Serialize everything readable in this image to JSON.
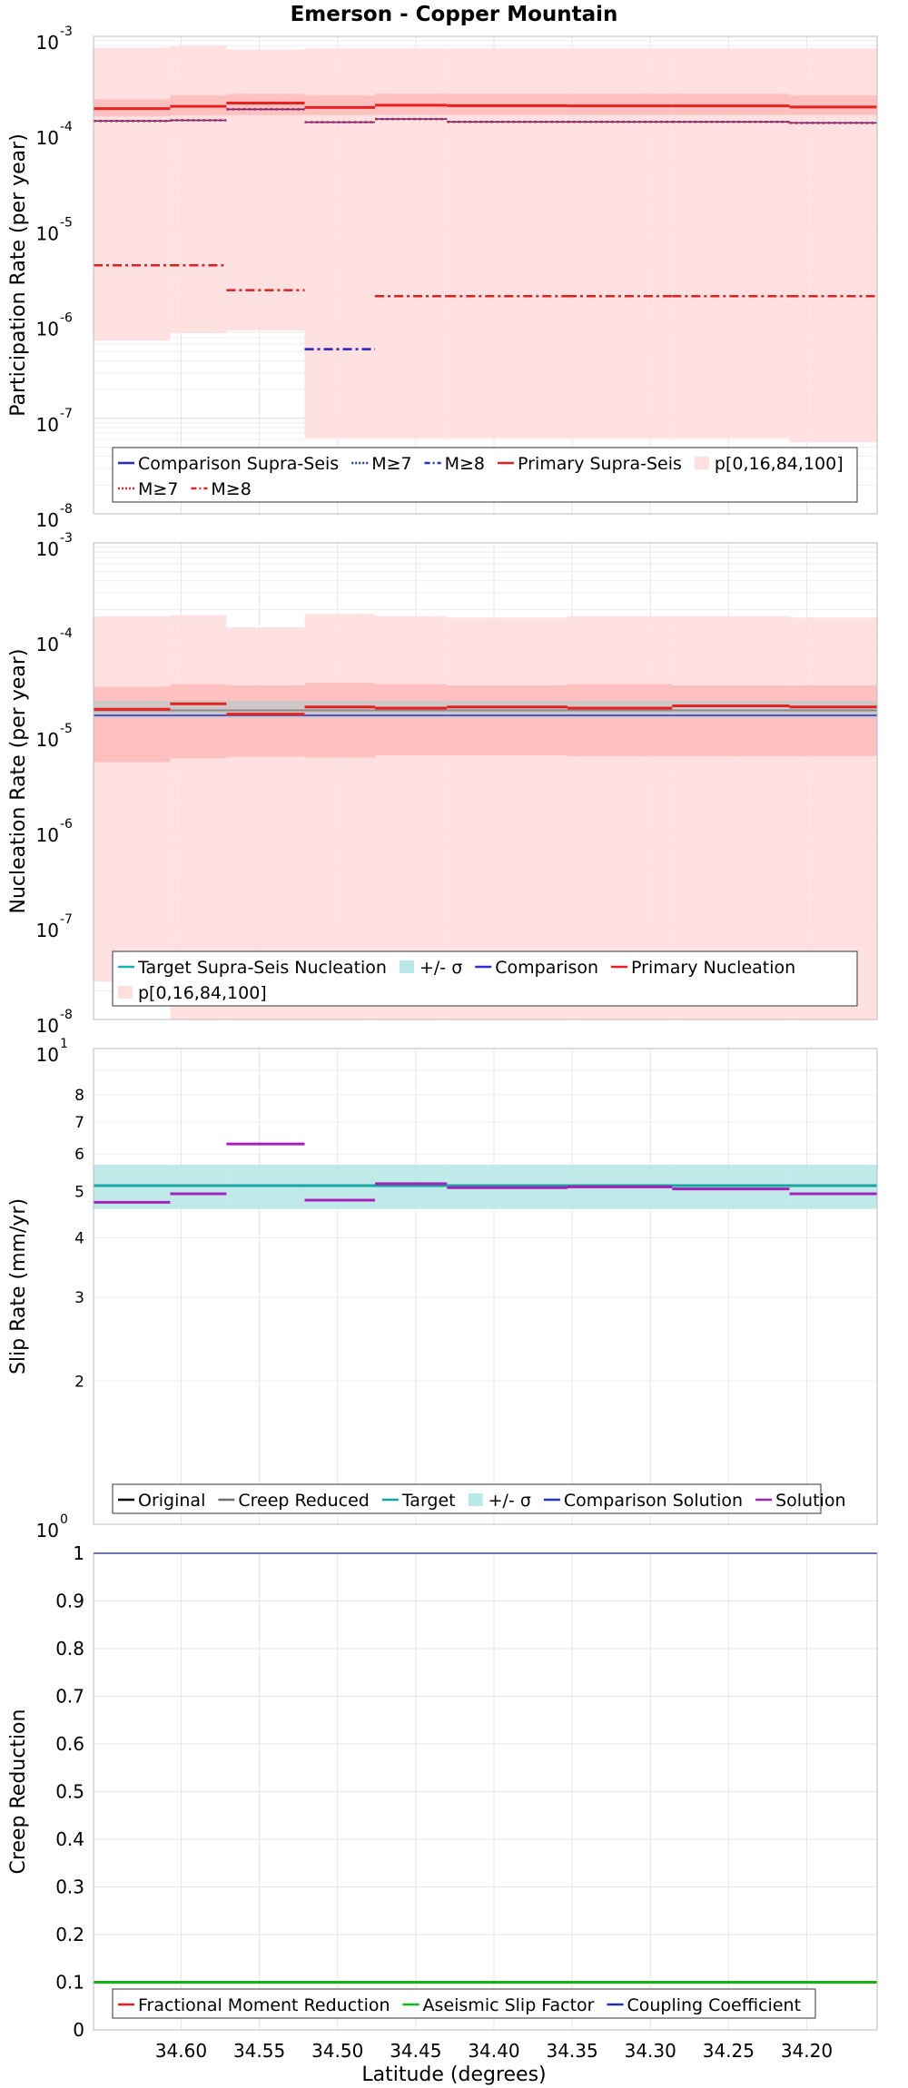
{
  "chart_data": {
    "title": "Emerson - Copper Mountain",
    "xlabel": "Latitude (degrees)",
    "x_reversed": true,
    "xlim": [
      34.656,
      34.155
    ],
    "x_ticks": [
      "34.60",
      "34.55",
      "34.50",
      "34.45",
      "34.40",
      "34.35",
      "34.30",
      "34.25",
      "34.20"
    ],
    "x_tick_values": [
      34.6,
      34.55,
      34.5,
      34.45,
      34.4,
      34.35,
      34.3,
      34.25,
      34.2
    ],
    "bin_edges": [
      34.656,
      34.607,
      34.571,
      34.521,
      34.476,
      34.43,
      34.353,
      34.286,
      34.211,
      34.155
    ],
    "panels": [
      {
        "id": "participation",
        "type": "step",
        "ylabel": "Participation Rate (per year)",
        "yscale": "log",
        "ylim": [
          1e-08,
          0.001
        ],
        "y_ticks": [
          {
            "base": "10",
            "exp": "-8"
          },
          {
            "base": "10",
            "exp": "-7"
          },
          {
            "base": "10",
            "exp": "-6"
          },
          {
            "base": "10",
            "exp": "-5"
          },
          {
            "base": "10",
            "exp": "-4"
          },
          {
            "base": "10",
            "exp": "-3"
          }
        ],
        "bands": [
          {
            "name": "p[0,16,84,100] outer",
            "color": "#ffdede",
            "lower": [
              6.5e-07,
              7.8e-07,
              8.3e-07,
              6.2e-08,
              6.2e-08,
              6.2e-08,
              6.2e-08,
              6.2e-08,
              5.6e-08
            ],
            "upper": [
              0.00076,
              0.00079,
              0.00073,
              0.00075,
              0.00075,
              0.00075,
              0.00075,
              0.00075,
              0.00075
            ]
          },
          {
            "name": "p[0,16,84,100] inner",
            "color": "#ffbcbc",
            "lower": [
              0.000145,
              0.000148,
              0.00015,
              0.00015,
              0.00015,
              0.00015,
              0.00015,
              0.00015,
              0.00015
            ],
            "upper": [
              0.00022,
              0.00024,
              0.00025,
              0.00024,
              0.00025,
              0.00025,
              0.00025,
              0.00025,
              0.00024
            ]
          }
        ],
        "series": [
          {
            "name": "Primary Supra-Seis",
            "color": "#e8201f",
            "dash": "",
            "width": 3,
            "values": [
              0.000175,
              0.000185,
              0.0002,
              0.00018,
              0.00019,
              0.000188,
              0.000187,
              0.000187,
              0.000182
            ]
          },
          {
            "name": "Comparison Supra-Seis",
            "color": "#1f2fc8",
            "dash": "",
            "width": 1.5,
            "values": [
              0.00013,
              0.000132,
              0.000172,
              0.000126,
              0.000136,
              0.000127,
              0.000127,
              0.000127,
              0.000124
            ]
          },
          {
            "name": "M≥7",
            "color": "#d21f2a",
            "dash": "3,3",
            "width": 2.5,
            "values": [
              0.00013,
              0.000132,
              0.000172,
              0.000126,
              0.000136,
              0.000127,
              0.000127,
              0.000127,
              0.000124
            ]
          },
          {
            "name": "M≥8",
            "color": "#e02020",
            "dash": "10,4,3,4",
            "width": 2.5,
            "values": [
              4e-06,
              4e-06,
              2.2e-06,
              5.3e-07,
              1.9e-06,
              1.9e-06,
              1.9e-06,
              1.9e-06,
              1.9e-06
            ]
          },
          {
            "name": "Comparison M≥8",
            "color": "#2a2fd0",
            "dash": "10,4,3,4",
            "width": 2.5,
            "segments": [
              3
            ],
            "values": [
              5.3e-07
            ]
          }
        ],
        "legend": {
          "entries": [
            {
              "label": "Comparison Supra-Seis",
              "color": "#1f2fc8",
              "style": "solid"
            },
            {
              "label": "M≥7",
              "color": "#1f2fc8",
              "style": "dot"
            },
            {
              "label": "M≥8",
              "color": "#1f2fc8",
              "style": "dashdot"
            },
            {
              "label": "Primary Supra-Seis",
              "color": "#e8201f",
              "style": "solid"
            },
            {
              "label": "p[0,16,84,100]",
              "color": "#ffdede",
              "style": "box"
            },
            {
              "label": "M≥7",
              "color": "#e8201f",
              "style": "dot"
            },
            {
              "label": "M≥8",
              "color": "#e8201f",
              "style": "dashdot"
            }
          ]
        }
      },
      {
        "id": "nucleation",
        "type": "step",
        "ylabel": "Nucleation Rate (per year)",
        "yscale": "log",
        "ylim": [
          1e-08,
          0.001
        ],
        "y_ticks": [
          {
            "base": "10",
            "exp": "-8"
          },
          {
            "base": "10",
            "exp": "-7"
          },
          {
            "base": "10",
            "exp": "-6"
          },
          {
            "base": "10",
            "exp": "-5"
          },
          {
            "base": "10",
            "exp": "-4"
          },
          {
            "base": "10",
            "exp": "-3"
          }
        ],
        "bands": [
          {
            "name": "p[0,16,84,100] outer",
            "color": "#ffdede",
            "lower": [
              2.5e-08,
              1e-08,
              1e-08,
              1e-08,
              1e-08,
              1e-08,
              1e-08,
              1e-08,
              1e-08
            ],
            "upper": [
              0.00017,
              0.000175,
              0.00013,
              0.00018,
              0.00017,
              0.000165,
              0.00017,
              0.00017,
              0.000165
            ]
          },
          {
            "name": "p[0,16,84,100] inner",
            "color": "#ffbcbc",
            "lower": [
              5e-06,
              5.5e-06,
              5.7e-06,
              5.6e-06,
              5.9e-06,
              5.9e-06,
              5.8e-06,
              5.8e-06,
              5.8e-06
            ],
            "upper": [
              3.1e-05,
              3.3e-05,
              3.2e-05,
              3.4e-05,
              3.3e-05,
              3.2e-05,
              3.3e-05,
              3.2e-05,
              3.2e-05
            ]
          },
          {
            "name": "+/- σ",
            "color": "#c8c8c8",
            "lower": [
              1.45e-05,
              1.45e-05,
              1.45e-05,
              1.45e-05,
              1.45e-05,
              1.45e-05,
              1.45e-05,
              1.45e-05,
              1.45e-05
            ],
            "upper": [
              2.2e-05,
              2.2e-05,
              2.2e-05,
              2.2e-05,
              2.2e-05,
              2.2e-05,
              2.2e-05,
              2.2e-05,
              2.2e-05
            ]
          }
        ],
        "series": [
          {
            "name": "Target Supra-Seis Nucleation",
            "color": "#8a8a8a",
            "dash": "",
            "width": 2,
            "values": [
              1.75e-05,
              1.75e-05,
              1.75e-05,
              1.75e-05,
              1.75e-05,
              1.75e-05,
              1.75e-05,
              1.75e-05,
              1.75e-05
            ]
          },
          {
            "name": "Comparison",
            "color": "#2a2fd0",
            "dash": "",
            "width": 1.5,
            "values": [
              1.55e-05,
              1.55e-05,
              1.55e-05,
              1.55e-05,
              1.55e-05,
              1.55e-05,
              1.55e-05,
              1.55e-05,
              1.55e-05
            ]
          },
          {
            "name": "Primary Nucleation",
            "color": "#e8201f",
            "dash": "",
            "width": 3,
            "values": [
              1.8e-05,
              2.05e-05,
              1.6e-05,
              1.9e-05,
              1.85e-05,
              1.9e-05,
              1.85e-05,
              1.95e-05,
              1.9e-05
            ]
          }
        ],
        "legend": {
          "entries": [
            {
              "label": "Target Supra-Seis Nucleation",
              "color": "#19b2b2",
              "style": "solid"
            },
            {
              "label": "+/- σ",
              "color": "#b8e8e8",
              "style": "box"
            },
            {
              "label": "Comparison",
              "color": "#2a2fd0",
              "style": "solid"
            },
            {
              "label": "Primary Nucleation",
              "color": "#e8201f",
              "style": "solid"
            },
            {
              "label": "p[0,16,84,100]",
              "color": "#ffdede",
              "style": "box"
            }
          ]
        }
      },
      {
        "id": "slip",
        "type": "step",
        "ylabel": "Slip Rate (mm/yr)",
        "yscale": "log",
        "ylim": [
          1,
          10
        ],
        "y_ticks_major": [
          {
            "base": "10",
            "exp": "1"
          },
          {
            "base": "10",
            "exp": "0"
          }
        ],
        "y_ticks_minor": [
          "2",
          "3",
          "4",
          "5",
          "6",
          "7",
          "8"
        ],
        "y_ticks_minor_values": [
          2,
          3,
          4,
          5,
          6,
          7,
          8
        ],
        "bands": [
          {
            "name": "+/- σ",
            "color": "#b9e8e8",
            "lower": [
              4.6,
              4.6,
              4.6,
              4.6,
              4.6,
              4.6,
              4.6,
              4.6,
              4.6
            ],
            "upper": [
              5.7,
              5.7,
              5.7,
              5.7,
              5.7,
              5.7,
              5.7,
              5.7,
              5.7
            ]
          }
        ],
        "series": [
          {
            "name": "Target",
            "color": "#17a5a0",
            "dash": "",
            "width": 3,
            "values": [
              5.15,
              5.15,
              5.15,
              5.15,
              5.15,
              5.15,
              5.15,
              5.15,
              5.15
            ]
          },
          {
            "name": "Solution",
            "color": "#a321b8",
            "dash": "",
            "width": 3,
            "values": [
              4.75,
              4.95,
              6.3,
              4.8,
              5.2,
              5.1,
              5.12,
              5.07,
              4.95
            ]
          }
        ],
        "legend": {
          "entries": [
            {
              "label": "Original",
              "color": "#000000",
              "style": "solid"
            },
            {
              "label": "Creep Reduced",
              "color": "#6e6e6e",
              "style": "solid"
            },
            {
              "label": "Target",
              "color": "#17a5a0",
              "style": "solid"
            },
            {
              "label": "+/- σ",
              "color": "#b9e8e8",
              "style": "box"
            },
            {
              "label": "Comparison Solution",
              "color": "#2a2fd0",
              "style": "solid"
            },
            {
              "label": "Solution",
              "color": "#a321b8",
              "style": "solid"
            }
          ]
        }
      },
      {
        "id": "creep",
        "type": "line",
        "ylabel": "Creep Reduction",
        "yscale": "linear",
        "ylim": [
          0,
          1
        ],
        "y_ticks": [
          "0",
          "0.1",
          "0.2",
          "0.3",
          "0.4",
          "0.5",
          "0.6",
          "0.7",
          "0.8",
          "0.9",
          "1"
        ],
        "y_tick_values": [
          0,
          0.1,
          0.2,
          0.3,
          0.4,
          0.5,
          0.6,
          0.7,
          0.8,
          0.9,
          1
        ],
        "series": [
          {
            "name": "Fractional Moment Reduction",
            "color": "#e8201f",
            "dash": "",
            "width": 2,
            "values": [
              0.1,
              0.1,
              0.1,
              0.1,
              0.1,
              0.1,
              0.1,
              0.1,
              0.1
            ]
          },
          {
            "name": "Aseismic Slip Factor",
            "color": "#12b312",
            "dash": "",
            "width": 3,
            "values": [
              0.1,
              0.1,
              0.1,
              0.1,
              0.1,
              0.1,
              0.1,
              0.1,
              0.1
            ]
          },
          {
            "name": "Coupling Coefficient",
            "color": "#1f2fa8",
            "dash": "",
            "width": 2,
            "values": [
              1,
              1,
              1,
              1,
              1,
              1,
              1,
              1,
              1
            ]
          }
        ],
        "legend": {
          "entries": [
            {
              "label": "Fractional Moment Reduction",
              "color": "#e8201f",
              "style": "solid"
            },
            {
              "label": "Aseismic Slip Factor",
              "color": "#12b312",
              "style": "solid"
            },
            {
              "label": "Coupling Coefficient",
              "color": "#1f2fa8",
              "style": "solid"
            }
          ]
        }
      }
    ]
  }
}
